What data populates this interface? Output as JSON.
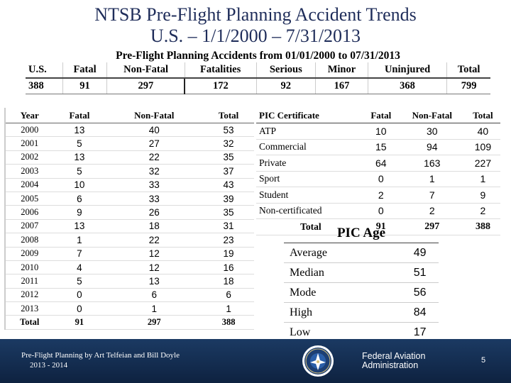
{
  "title": {
    "line1": "NTSB Pre-Flight Planning Accident Trends",
    "line2": "U.S. – 1/1/2000 – 7/31/2013"
  },
  "summary": {
    "caption": "Pre-Flight Planning Accidents from 01/01/2000 to 07/31/2013",
    "headers": [
      "U.S.",
      "Fatal",
      "Non-Fatal",
      "Fatalities",
      "Serious",
      "Minor",
      "Uninjured",
      "Total"
    ],
    "values": [
      "388",
      "91",
      "297",
      "172",
      "92",
      "167",
      "368",
      "799"
    ]
  },
  "year_table": {
    "headers": [
      "Year",
      "Fatal",
      "Non-Fatal",
      "Total"
    ],
    "rows": [
      [
        "2000",
        "13",
        "40",
        "53"
      ],
      [
        "2001",
        "5",
        "27",
        "32"
      ],
      [
        "2002",
        "13",
        "22",
        "35"
      ],
      [
        "2003",
        "5",
        "32",
        "37"
      ],
      [
        "2004",
        "10",
        "33",
        "43"
      ],
      [
        "2005",
        "6",
        "33",
        "39"
      ],
      [
        "2006",
        "9",
        "26",
        "35"
      ],
      [
        "2007",
        "13",
        "18",
        "31"
      ],
      [
        "2008",
        "1",
        "22",
        "23"
      ],
      [
        "2009",
        "7",
        "12",
        "19"
      ],
      [
        "2010",
        "4",
        "12",
        "16"
      ],
      [
        "2011",
        "5",
        "13",
        "18"
      ],
      [
        "2012",
        "0",
        "6",
        "6"
      ],
      [
        "2013",
        "0",
        "1",
        "1"
      ]
    ],
    "total": [
      "Total",
      "91",
      "297",
      "388"
    ]
  },
  "pic_table": {
    "headers": [
      "PIC Certificate",
      "Fatal",
      "Non-Fatal",
      "Total"
    ],
    "rows": [
      [
        "ATP",
        "10",
        "30",
        "40"
      ],
      [
        "Commercial",
        "15",
        "94",
        "109"
      ],
      [
        "Private",
        "64",
        "163",
        "227"
      ],
      [
        "Sport",
        "0",
        "1",
        "1"
      ],
      [
        "Student",
        "2",
        "7",
        "9"
      ],
      [
        "Non-certificated",
        "0",
        "2",
        "2"
      ]
    ],
    "total": [
      "Total",
      "91",
      "297",
      "388"
    ]
  },
  "pic_age": {
    "title": "PIC Age",
    "rows": [
      [
        "Average",
        "49"
      ],
      [
        "Median",
        "51"
      ],
      [
        "Mode",
        "56"
      ],
      [
        "High",
        "84"
      ],
      [
        "Low",
        "17"
      ]
    ]
  },
  "footer": {
    "line1": "Pre-Flight Planning by Art Telfeian and Bill Doyle",
    "line2": "2013 - 2014",
    "agency_line1": "Federal Aviation",
    "agency_line2": "Administration",
    "page": "5",
    "logo_icon": "faa-seal-icon"
  }
}
